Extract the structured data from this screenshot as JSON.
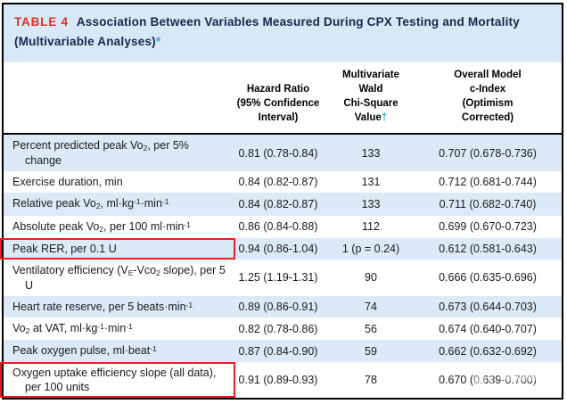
{
  "title": {
    "tag": "TABLE 4",
    "text": "Association Between Variables Measured During CPX Testing and Mortality (Multivariable Analyses)",
    "footnote_marker": "*"
  },
  "columns": {
    "label": "",
    "hazard_ratio": "Hazard Ratio<br>(95% Confidence<br>Interval)",
    "chi_square": "Multivariate<br>Wald<br>Chi-Square<br>Value<span class=\"blue-mark\">&dagger;</span>",
    "c_index": "Overall Model<br>c-Index<br>(Optimism<br>Corrected)"
  },
  "rows": [
    {
      "label": "Percent predicted peak Vo<sub>2</sub>, per 5% change",
      "hazard_ratio": "0.81 (0.78-0.84)",
      "chi_square": "133",
      "c_index": "0.707 (0.678-0.736)",
      "boxed": false
    },
    {
      "label": "Exercise duration, min",
      "hazard_ratio": "0.84 (0.82-0.87)",
      "chi_square": "131",
      "c_index": "0.712 (0.681-0.744)",
      "boxed": false
    },
    {
      "label": "Relative peak Vo<sub>2</sub>, ml&middot;kg<sup>-1</sup>&middot;min<sup>-1</sup>",
      "hazard_ratio": "0.84 (0.82-0.87)",
      "chi_square": "133",
      "c_index": "0.711 (0.682-0.740)",
      "boxed": false
    },
    {
      "label": "Absolute peak Vo<sub>2</sub>, per 100 ml&middot;min<sup>-1</sup>",
      "hazard_ratio": "0.86 (0.84-0.88)",
      "chi_square": "112",
      "c_index": "0.699 (0.670-0.723)",
      "boxed": false
    },
    {
      "label": "Peak RER, per 0.1 U",
      "hazard_ratio": "0.94 (0.86-1.04)",
      "chi_square": "1 (p = 0.24)",
      "c_index": "0.612 (0.581-0.643)",
      "boxed": true
    },
    {
      "label": "Ventilatory efficiency (V<sub>E</sub>-Vco<sub>2</sub> slope), per 5 U",
      "hazard_ratio": "1.25 (1.19-1.31)",
      "chi_square": "90",
      "c_index": "0.666 (0.635-0.696)",
      "boxed": false
    },
    {
      "label": "Heart rate reserve, per 5 beats&middot;min<sup>-1</sup>",
      "hazard_ratio": "0.89 (0.86-0.91)",
      "chi_square": "74",
      "c_index": "0.673 (0.644-0.703)",
      "boxed": false
    },
    {
      "label": "Vo<sub>2</sub> at VAT, ml&middot;kg<sup>-1</sup>&middot;min<sup>-1</sup>",
      "hazard_ratio": "0.82 (0.78-0.86)",
      "chi_square": "56",
      "c_index": "0.674 (0.640-0.707)",
      "boxed": false
    },
    {
      "label": "Peak oxygen pulse, ml&middot;beat<sup>-1</sup>",
      "hazard_ratio": "0.87 (0.84-0.90)",
      "chi_square": "59",
      "c_index": "0.662 (0.632-0.692)",
      "boxed": false
    },
    {
      "label": "Oxygen uptake efficiency slope (all data), per 100 units",
      "hazard_ratio": "0.91 (0.89-0.93)",
      "chi_square": "78",
      "c_index": "0.670 (0.639-0.700)",
      "boxed": true
    }
  ],
  "colors": {
    "band_blue": "#d9e8f6",
    "stripe_blue": "#dce9f6",
    "title_navy": "#15274d",
    "table_tag_red": "#e23128",
    "marker_blue": "#2fa1d9",
    "highlight_box_red": "#ea1c24",
    "border_black": "#000000"
  }
}
